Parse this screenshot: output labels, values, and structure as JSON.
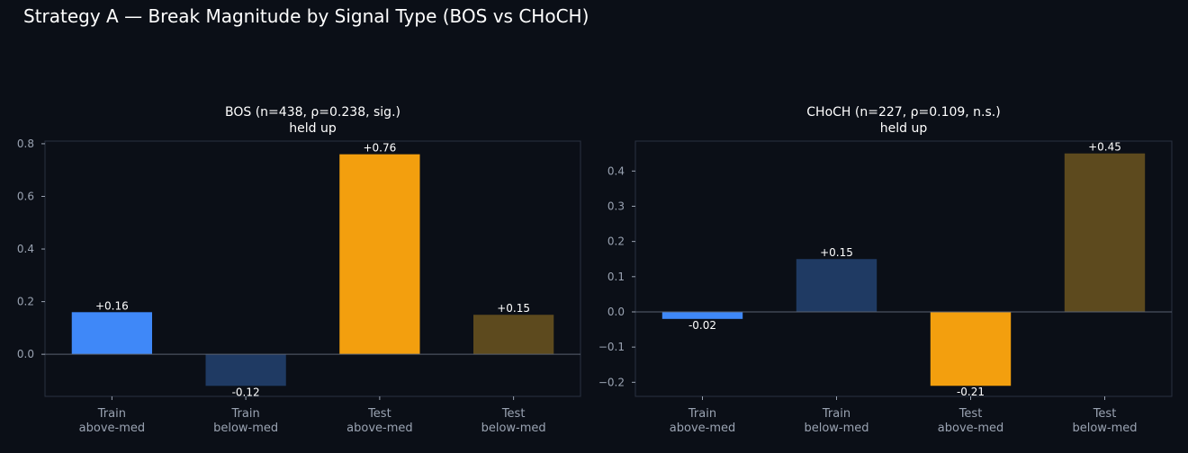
{
  "figure": {
    "title": "Strategy A — Break Magnitude by Signal Type (BOS vs CHoCH)"
  },
  "colors": {
    "background": "#0b0f17",
    "frame": "#2a3140",
    "zero_line": "#5a6270",
    "text": "#ffffff",
    "muted_text": "#9aa3b2"
  },
  "chart_data": [
    {
      "type": "bar",
      "title": "BOS (n=438, ρ=0.238, sig.)",
      "subtitle": "held up",
      "categories": [
        "Train\nabove-med",
        "Train\nbelow-med",
        "Test\nabove-med",
        "Test\nbelow-med"
      ],
      "values": [
        0.16,
        -0.12,
        0.76,
        0.15
      ],
      "value_labels": [
        "+0.16",
        "-0.12",
        "+0.76",
        "+0.15"
      ],
      "bar_colors": [
        "#3f88f8",
        "#1f3a63",
        "#f39f0e",
        "#5d4a1e"
      ],
      "ylim": [
        -0.16,
        0.81
      ],
      "yticks": [
        0.0,
        0.2,
        0.4,
        0.6,
        0.8
      ],
      "ytick_labels": [
        "0.0",
        "0.2",
        "0.4",
        "0.6",
        "0.8"
      ],
      "grid": false
    },
    {
      "type": "bar",
      "title": "CHoCH (n=227, ρ=0.109, n.s.)",
      "subtitle": "held up",
      "categories": [
        "Train\nabove-med",
        "Train\nbelow-med",
        "Test\nabove-med",
        "Test\nbelow-med"
      ],
      "values": [
        -0.02,
        0.15,
        -0.21,
        0.45
      ],
      "value_labels": [
        "-0.02",
        "+0.15",
        "-0.21",
        "+0.45"
      ],
      "bar_colors": [
        "#3f88f8",
        "#1f3a63",
        "#f39f0e",
        "#5d4a1e"
      ],
      "ylim": [
        -0.24,
        0.485
      ],
      "yticks": [
        -0.2,
        -0.1,
        0.0,
        0.1,
        0.2,
        0.3,
        0.4
      ],
      "ytick_labels": [
        "−0.2",
        "−0.1",
        "0.0",
        "0.1",
        "0.2",
        "0.3",
        "0.4"
      ],
      "grid": false
    }
  ]
}
